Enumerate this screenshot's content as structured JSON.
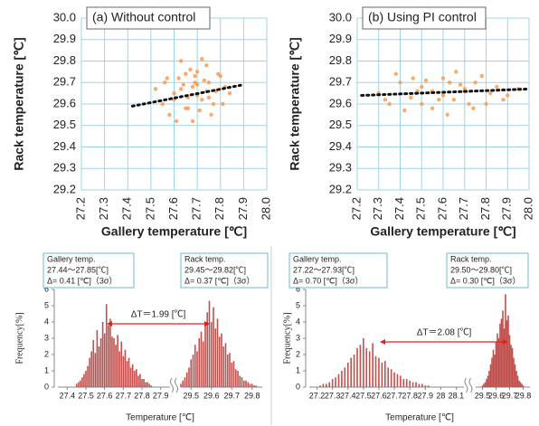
{
  "chart_data": [
    {
      "type": "scatter",
      "panel_label": "(a) Without control",
      "xlabel": "Gallery temperature [℃]",
      "ylabel": "Rack temperature [℃]",
      "color": "#f79646",
      "grid": true,
      "grid_color": "#9fd4e8",
      "xlim": [
        27.2,
        28.0
      ],
      "xticks": [
        27.2,
        27.3,
        27.4,
        27.5,
        27.6,
        27.7,
        27.8,
        27.9,
        {
          "value": 28.0,
          "label": "28.0"
        }
      ],
      "ylim": [
        29.2,
        30.0
      ],
      "yticks": [
        29.2,
        29.3,
        29.4,
        29.5,
        29.6,
        29.7,
        29.8,
        29.9,
        {
          "value": 30.0,
          "label": "30.0"
        }
      ],
      "x": [
        27.55,
        27.6,
        27.62,
        27.65,
        27.68,
        27.7,
        27.72,
        27.75,
        27.78,
        27.8,
        27.58,
        27.63,
        27.66,
        27.69,
        27.71,
        27.74,
        27.77,
        27.82,
        27.52,
        27.57,
        27.61,
        27.64,
        27.67,
        27.7,
        27.73,
        27.76,
        27.79,
        27.84,
        27.6,
        27.65,
        27.68,
        27.72,
        27.75,
        27.56,
        27.63,
        27.7,
        27.81,
        27.66,
        27.69,
        27.74
      ],
      "y": [
        29.6,
        29.65,
        29.72,
        29.58,
        29.68,
        29.75,
        29.62,
        29.7,
        29.66,
        29.73,
        29.55,
        29.8,
        29.63,
        29.7,
        29.57,
        29.78,
        29.6,
        29.68,
        29.67,
        29.72,
        29.52,
        29.69,
        29.76,
        29.64,
        29.71,
        29.55,
        29.74,
        29.65,
        29.62,
        29.74,
        29.52,
        29.81,
        29.63,
        29.7,
        29.67,
        29.69,
        29.6,
        29.58,
        29.73,
        29.66
      ],
      "trendline": {
        "x": [
          27.42,
          27.9
        ],
        "y": [
          29.59,
          29.69
        ]
      }
    },
    {
      "type": "scatter",
      "panel_label": "(b) Using PI control",
      "xlabel": "Gallery temperature [℃]",
      "ylabel": "Rack temperature [℃]",
      "color": "#f79646",
      "grid": true,
      "grid_color": "#9fd4e8",
      "xlim": [
        27.2,
        28.0
      ],
      "xticks": [
        27.2,
        27.3,
        27.4,
        27.5,
        27.6,
        27.7,
        27.8,
        27.9,
        {
          "value": 28.0,
          "label": "28.0"
        }
      ],
      "ylim": [
        29.2,
        30.0
      ],
      "yticks": [
        29.2,
        29.3,
        29.4,
        29.5,
        29.6,
        29.7,
        29.8,
        29.9,
        {
          "value": 30.0,
          "label": "30.0"
        }
      ],
      "x": [
        27.3,
        27.35,
        27.4,
        27.45,
        27.5,
        27.55,
        27.6,
        27.65,
        27.7,
        27.75,
        27.8,
        27.85,
        27.9,
        27.95,
        27.38,
        27.42,
        27.48,
        27.52,
        27.58,
        27.62,
        27.68,
        27.72,
        27.78,
        27.82,
        27.88,
        27.33,
        27.46,
        27.55,
        27.6,
        27.66,
        27.74,
        27.5,
        27.63,
        27.7
      ],
      "y": [
        29.65,
        29.6,
        29.7,
        29.63,
        29.68,
        29.58,
        29.72,
        29.62,
        29.66,
        29.7,
        29.6,
        29.68,
        29.64,
        29.67,
        29.74,
        29.57,
        29.66,
        29.71,
        29.62,
        29.55,
        29.69,
        29.6,
        29.73,
        29.65,
        29.62,
        29.62,
        29.72,
        29.66,
        29.64,
        29.75,
        29.58,
        29.6,
        29.7,
        29.67
      ],
      "trendline": {
        "x": [
          27.22,
          28.0
        ],
        "y": [
          29.64,
          29.67
        ]
      }
    },
    {
      "type": "histogram",
      "xlabel": "Temperature [℃]",
      "ylabel": "Frequency[%]",
      "color": "#c0504d",
      "ylim": [
        0,
        6
      ],
      "yticks": [
        0,
        1,
        2,
        3,
        4,
        5,
        6
      ],
      "segments": [
        {
          "xlim": [
            27.35,
            27.95
          ],
          "xticks": [
            27.4,
            27.5,
            27.6,
            27.7,
            27.8,
            27.9
          ]
        },
        {
          "xlim": [
            29.45,
            29.85
          ],
          "xticks": [
            29.5,
            29.6,
            29.7,
            29.8
          ]
        }
      ],
      "annotations": [
        {
          "lines": [
            "Gallery temp.",
            "27.44～27.85[℃]",
            "Δ= 0.41 [℃]（3σ）"
          ]
        },
        {
          "lines": [
            "Rack temp.",
            "29.45～29.82[℃]",
            "Δ= 0.37 [℃]（3σ）"
          ]
        }
      ],
      "delta_label": "ΔT＝1.99 [℃]",
      "series": [
        {
          "segment": 0,
          "x": [
            27.45,
            27.46,
            27.47,
            27.48,
            27.49,
            27.5,
            27.51,
            27.52,
            27.53,
            27.54,
            27.55,
            27.56,
            27.57,
            27.58,
            27.59,
            27.6,
            27.61,
            27.62,
            27.63,
            27.64,
            27.65,
            27.66,
            27.67,
            27.68,
            27.69,
            27.7,
            27.71,
            27.72,
            27.73,
            27.74,
            27.75,
            27.76,
            27.77,
            27.78,
            27.79,
            27.8,
            27.81,
            27.82,
            27.83,
            27.84,
            27.85
          ],
          "values": [
            0.2,
            0.3,
            0.4,
            0.6,
            0.8,
            1.0,
            1.3,
            1.8,
            2.2,
            2.9,
            2.1,
            3.5,
            2.5,
            3.0,
            4.0,
            3.3,
            5.1,
            3.8,
            4.2,
            3.1,
            3.0,
            2.6,
            3.2,
            2.2,
            2.8,
            1.9,
            2.3,
            1.6,
            1.8,
            1.2,
            1.4,
            1.0,
            1.1,
            0.7,
            0.8,
            0.5,
            0.5,
            0.3,
            0.3,
            0.2,
            0.1
          ]
        },
        {
          "segment": 1,
          "x": [
            29.45,
            29.46,
            29.47,
            29.48,
            29.49,
            29.5,
            29.51,
            29.52,
            29.53,
            29.54,
            29.55,
            29.56,
            29.57,
            29.58,
            29.59,
            29.6,
            29.61,
            29.62,
            29.63,
            29.64,
            29.65,
            29.66,
            29.67,
            29.68,
            29.69,
            29.7,
            29.71,
            29.72,
            29.73,
            29.74,
            29.75,
            29.76,
            29.77,
            29.78,
            29.79,
            29.8,
            29.81,
            29.82
          ],
          "values": [
            0.2,
            0.4,
            0.6,
            0.9,
            1.2,
            1.7,
            2.0,
            2.6,
            2.2,
            3.0,
            3.4,
            2.8,
            3.8,
            4.6,
            5.3,
            4.0,
            4.9,
            3.6,
            4.2,
            3.1,
            3.3,
            2.5,
            2.7,
            2.0,
            2.1,
            1.5,
            1.6,
            1.1,
            1.0,
            0.7,
            0.6,
            0.4,
            0.4,
            0.3,
            0.2,
            0.2,
            0.1,
            0.1
          ]
        }
      ]
    },
    {
      "type": "histogram",
      "xlabel": "Temperature [℃]",
      "ylabel": "Frequency[%]",
      "color": "#c0504d",
      "ylim": [
        0,
        6
      ],
      "yticks": [
        0,
        1,
        2,
        3,
        4,
        5,
        6
      ],
      "segments": [
        {
          "xlim": [
            27.15,
            28.15
          ],
          "xticks": [
            27.2,
            27.3,
            27.4,
            27.5,
            27.6,
            27.7,
            27.8,
            27.9,
            28,
            28.1
          ]
        },
        {
          "xlim": [
            29.45,
            29.85
          ],
          "xticks": [
            29.5,
            29.6,
            29.7,
            29.8
          ]
        }
      ],
      "annotations": [
        {
          "lines": [
            "Gallery temp.",
            "27.22～27.93[℃]",
            "Δ= 0.70 [℃]（3σ）"
          ]
        },
        {
          "lines": [
            "Rack temp.",
            "29.50～29.80[℃]",
            "Δ= 0.30 [℃]（3σ）"
          ]
        }
      ],
      "delta_label": "ΔT＝2.08 [℃]",
      "series": [
        {
          "segment": 0,
          "x": [
            27.22,
            27.24,
            27.26,
            27.28,
            27.3,
            27.32,
            27.34,
            27.36,
            27.38,
            27.4,
            27.42,
            27.44,
            27.46,
            27.48,
            27.5,
            27.52,
            27.54,
            27.56,
            27.58,
            27.6,
            27.62,
            27.64,
            27.66,
            27.68,
            27.7,
            27.72,
            27.74,
            27.76,
            27.78,
            27.8,
            27.82,
            27.84,
            27.86,
            27.88,
            27.9,
            27.92
          ],
          "values": [
            0.1,
            0.2,
            0.2,
            0.3,
            0.5,
            0.6,
            0.8,
            1.0,
            1.2,
            1.5,
            1.8,
            2.0,
            2.4,
            2.6,
            3.0,
            2.4,
            2.2,
            2.7,
            1.9,
            1.8,
            1.5,
            1.6,
            1.2,
            1.1,
            0.9,
            0.8,
            0.7,
            0.5,
            0.5,
            0.4,
            0.3,
            0.3,
            0.2,
            0.2,
            0.1,
            0.1
          ]
        },
        {
          "segment": 1,
          "x": [
            29.5,
            29.51,
            29.52,
            29.53,
            29.54,
            29.55,
            29.56,
            29.57,
            29.58,
            29.59,
            29.6,
            29.61,
            29.62,
            29.63,
            29.64,
            29.65,
            29.66,
            29.67,
            29.68,
            29.69,
            29.7,
            29.71,
            29.72,
            29.73,
            29.74,
            29.75,
            29.76,
            29.77,
            29.78,
            29.79,
            29.8
          ],
          "values": [
            0.1,
            0.2,
            0.3,
            0.5,
            0.7,
            1.0,
            1.4,
            1.8,
            2.3,
            2.0,
            2.8,
            3.3,
            3.0,
            3.9,
            4.2,
            4.7,
            3.6,
            5.7,
            4.1,
            4.4,
            3.2,
            2.6,
            2.4,
            1.8,
            1.4,
            1.0,
            0.7,
            0.4,
            0.3,
            0.2,
            0.1
          ]
        }
      ]
    }
  ]
}
